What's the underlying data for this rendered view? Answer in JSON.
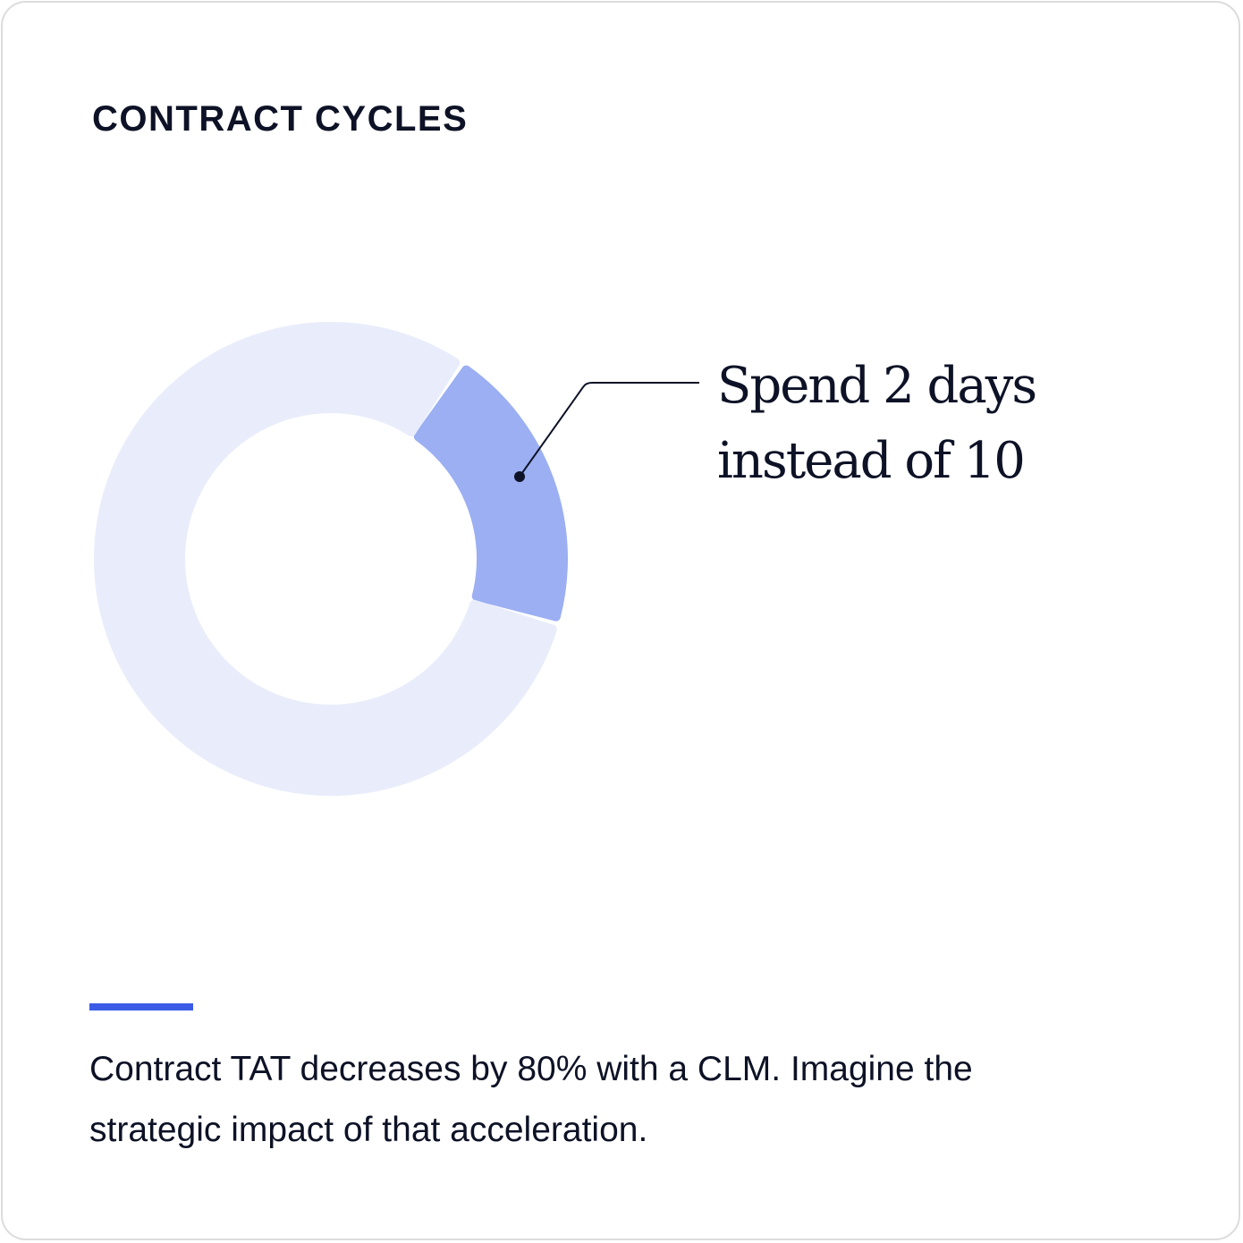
{
  "card": {
    "title": "CONTRACT CYCLES",
    "caption_lines": [
      "Contract TAT decreases by 80% with a CLM. Imagine the",
      "strategic impact of that acceleration."
    ]
  },
  "chart_data": {
    "type": "pie",
    "variant": "donut",
    "slices": [
      {
        "label": "Spend 2 days instead of 10",
        "value": 20,
        "color": "#9baff2",
        "highlighted": true
      },
      {
        "label": "",
        "value": 80,
        "color": "#e9edfb",
        "highlighted": false
      }
    ],
    "annotation": {
      "lines": [
        "Spend 2 days",
        "instead of 10"
      ],
      "target_slice": 0
    }
  },
  "colors": {
    "text": "#0d1226",
    "accent": "#3b5be6",
    "border": "#dcdcdc"
  }
}
